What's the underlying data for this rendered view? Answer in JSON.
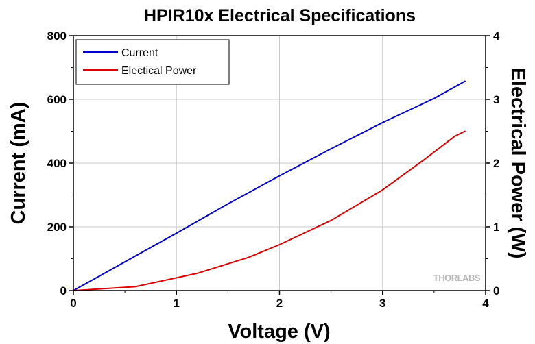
{
  "chart_data": {
    "type": "line",
    "title": "HPIR10x Electrical Specifications",
    "xlabel": "Voltage (V)",
    "ylabel": "Current (mA)",
    "y2label": "Electrical Power (W)",
    "xlim": [
      0,
      4
    ],
    "ylim": [
      0,
      800
    ],
    "y2lim": [
      0,
      4
    ],
    "x_ticks": [
      "0",
      "1",
      "2",
      "3",
      "4"
    ],
    "y_ticks": [
      "0",
      "200",
      "400",
      "600",
      "800"
    ],
    "y2_ticks": [
      "0",
      "1",
      "2",
      "3",
      "4"
    ],
    "grid": true,
    "legend_position": "top-left",
    "watermark": "THORLABS",
    "series": [
      {
        "name": "Current",
        "axis": "left",
        "color": "#0000cc",
        "x": [
          0,
          0.5,
          1.0,
          1.5,
          2.0,
          2.5,
          3.0,
          3.5,
          3.8
        ],
        "y": [
          0,
          90,
          180,
          272,
          360,
          445,
          527,
          603,
          657
        ]
      },
      {
        "name": "Electical Power",
        "axis": "right",
        "color": "#dd0000",
        "x": [
          0,
          0.6,
          1.2,
          1.7,
          2.0,
          2.5,
          3.0,
          3.4,
          3.7,
          3.8
        ],
        "y": [
          0,
          0.06,
          0.27,
          0.52,
          0.72,
          1.1,
          1.58,
          2.05,
          2.42,
          2.5
        ]
      }
    ]
  }
}
